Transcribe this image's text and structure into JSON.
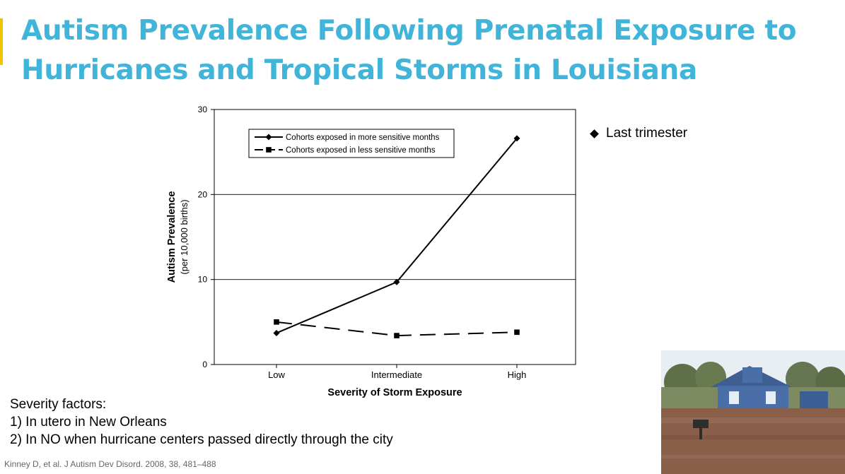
{
  "slide": {
    "title": "Autism Prevalence Following Prenatal Exposure to Hurricanes and Tropical Storms in Louisiana",
    "accent_color": "#f2c400",
    "title_color": "#41b4d9",
    "side_legend": {
      "marker": "diamond",
      "label": "Last trimester"
    },
    "notes": [
      "Severity factors:",
      "1) In utero in New Orleans",
      "2) In NO when hurricane centers passed directly through the city"
    ],
    "citation": "Kinney D, et al. J Autism Dev Disord. 2008, 38, 481–488",
    "photo": {
      "description_icon": "flooded-house-photo"
    }
  },
  "chart_data": {
    "type": "line",
    "title": "",
    "xlabel": "Severity of Storm Exposure",
    "ylabel": "Autism Prevalence",
    "ylabel_sub": "(per 10,000 births)",
    "categories": [
      "Low",
      "Intermediate",
      "High"
    ],
    "ylim": [
      0,
      30
    ],
    "yticks": [
      0,
      10,
      20,
      30
    ],
    "grid": "horizontal",
    "legend_position": "top-left",
    "series": [
      {
        "name": "Cohorts exposed in more sensitive months",
        "values": [
          3.7,
          9.7,
          26.6
        ],
        "marker": "diamond",
        "dash": "solid",
        "color": "#000000"
      },
      {
        "name": "Cohorts exposed in less sensitive months",
        "values": [
          5.0,
          3.4,
          3.8
        ],
        "marker": "square",
        "dash": "dashed",
        "color": "#000000"
      }
    ]
  }
}
